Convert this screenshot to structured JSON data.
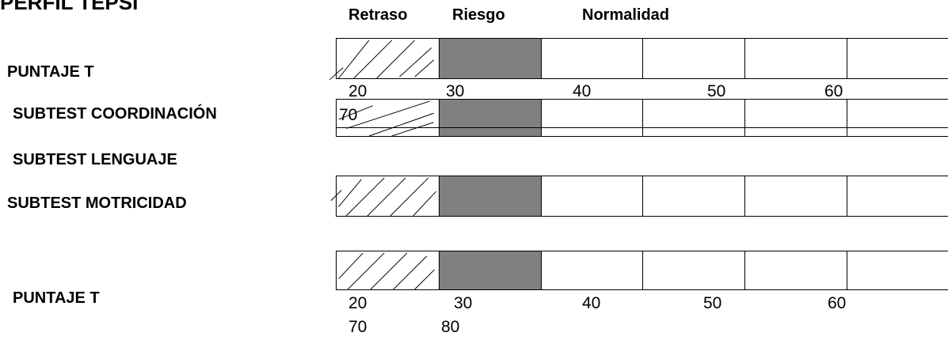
{
  "page": {
    "title": "PERFIL TEPSI"
  },
  "headers": {
    "retraso": "Retraso",
    "riesgo": "Riesgo",
    "normalidad": "Normalidad"
  },
  "rows": [
    {
      "label": "PUNTAJE T"
    },
    {
      "label": "SUBTEST COORDINACIÓN"
    },
    {
      "label": "SUBTEST LENGUAJE"
    },
    {
      "label": "SUBTEST MOTRICIDAD"
    },
    {
      "label": "PUNTAJE T"
    }
  ],
  "scale_top": {
    "ticks": [
      "20",
      "30",
      "40",
      "50",
      "60"
    ],
    "overflow": "70"
  },
  "scale_bottom": {
    "ticks": [
      "20",
      "30",
      "40",
      "50",
      "60"
    ],
    "overflow": [
      "70",
      "80"
    ]
  },
  "colors": {
    "risk_fill": "#808080",
    "line": "#000000"
  }
}
